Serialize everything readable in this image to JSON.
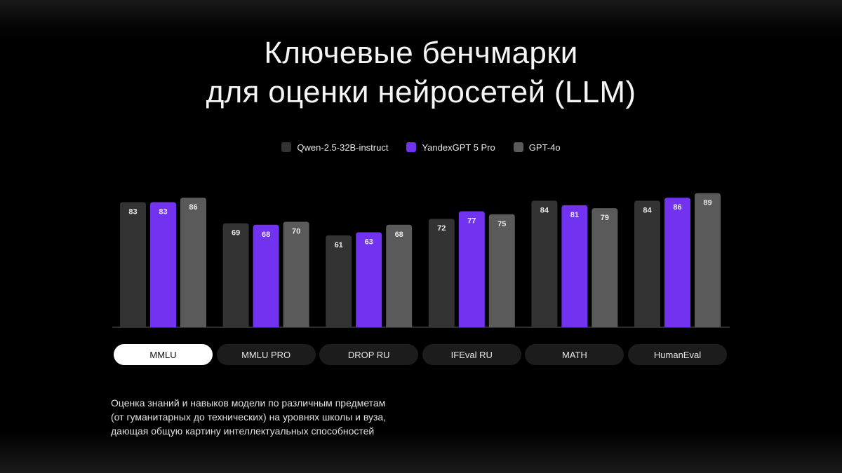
{
  "title_lines": [
    "Ключевые бенчмарки",
    "для оценки нейросетей (LLM)"
  ],
  "colors": {
    "background": "#000000",
    "qwen": "#333333",
    "yandex": "#7233f0",
    "gpt": "#5a5a5a",
    "tab_active_bg": "#ffffff",
    "tab_inactive_bg": "#1c1c1c"
  },
  "tabs": [
    {
      "label": "MMLU",
      "active": true
    },
    {
      "label": "MMLU PRO",
      "active": false
    },
    {
      "label": "DROP RU",
      "active": false
    },
    {
      "label": "IFEval RU",
      "active": false
    },
    {
      "label": "MATH",
      "active": false
    },
    {
      "label": "HumanEval",
      "active": false
    }
  ],
  "description_lines": [
    "Оценка знаний и навыков модели по различным предметам",
    "(от  гуманитарных до технических) на уровнях школы и вуза,",
    "дающая общую картину интеллектуальных способностей"
  ],
  "chart_data": {
    "type": "bar",
    "categories": [
      "MMLU",
      "MMLU PRO",
      "DROP RU",
      "IFEval RU",
      "MATH",
      "HumanEval"
    ],
    "series": [
      {
        "name": "Qwen-2.5-32B-instruct",
        "color": "#333333",
        "values": [
          83,
          69,
          61,
          72,
          84,
          84
        ]
      },
      {
        "name": "YandexGPT 5 Pro",
        "color": "#7233f0",
        "values": [
          83,
          68,
          63,
          77,
          81,
          86
        ]
      },
      {
        "name": "GPT-4o",
        "color": "#5a5a5a",
        "values": [
          86,
          70,
          68,
          75,
          79,
          89
        ]
      }
    ],
    "legend_position": "top-center",
    "data_labels": true,
    "grid": false
  }
}
